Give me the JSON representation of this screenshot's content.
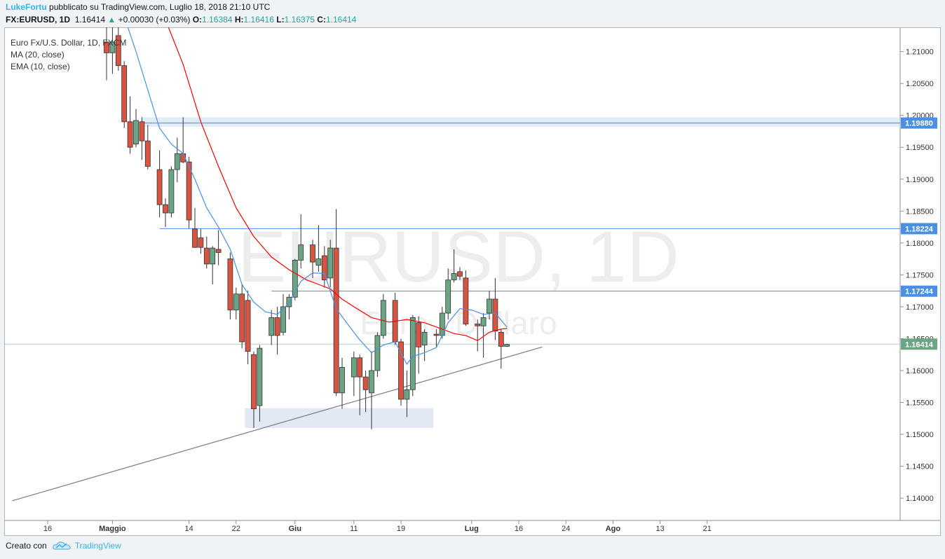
{
  "header": {
    "author": "LukeFortu",
    "published_text": "pubblicato su TradingView.com, Luglio 18, 2018 21:10 UTC",
    "symbol": "FX:EURUSD, 1D",
    "last": "1.16414",
    "arrow": "▲",
    "change": "+0.00030 (+0.03%)",
    "o_label": "O:",
    "o": "1.16384",
    "h_label": "H:",
    "h": "1.16416",
    "l_label": "L:",
    "l": "1.16375",
    "c_label": "C:",
    "c": "1.16414"
  },
  "legend": {
    "title": "Euro Fx/U.S. Dollar, 1D, FXCM",
    "ma": "MA (20, close)",
    "ema": "EMA (10, close)"
  },
  "watermark": {
    "line1": "EURUSD, 1D",
    "line2": "Euro / Dollaro"
  },
  "footer": {
    "created_with": "Creato con",
    "brand": "TradingView"
  },
  "colors": {
    "up": "#6ba583",
    "down": "#d75442",
    "ma": "#ff0000",
    "ema": "#4a90e2",
    "accent": "#3bb3e4"
  },
  "chart_data": {
    "type": "candlestick",
    "title": "Euro Fx/U.S. Dollar, 1D, FXCM",
    "ylim": [
      1.1365,
      1.2138
    ],
    "y_ticks": [
      "1.21000",
      "1.20500",
      "1.20000",
      "1.19500",
      "1.19000",
      "1.18500",
      "1.18000",
      "1.17500",
      "1.17000",
      "1.16500",
      "1.16000",
      "1.15500",
      "1.15000",
      "1.14500",
      "1.14000"
    ],
    "x_ticks": [
      {
        "day": 0,
        "label": "16"
      },
      {
        "day": 11,
        "label": "Maggio"
      },
      {
        "day": 24,
        "label": "14"
      },
      {
        "day": 32,
        "label": "22"
      },
      {
        "day": 42,
        "label": "Giu"
      },
      {
        "day": 52,
        "label": "11"
      },
      {
        "day": 60,
        "label": "19"
      },
      {
        "day": 72,
        "label": "Lug"
      },
      {
        "day": 80,
        "label": "16"
      },
      {
        "day": 88,
        "label": "24"
      },
      {
        "day": 96,
        "label": "Ago"
      },
      {
        "day": 104,
        "label": "13"
      },
      {
        "day": 112,
        "label": "21"
      }
    ],
    "candles": [
      {
        "day": 10,
        "o": 1.2115,
        "h": 1.215,
        "l": 1.2055,
        "c": 1.2098
      },
      {
        "day": 11,
        "o": 1.2098,
        "h": 1.215,
        "l": 1.2065,
        "c": 1.2115
      },
      {
        "day": 12,
        "o": 1.2125,
        "h": 1.216,
        "l": 1.207,
        "c": 1.2078
      },
      {
        "day": 13,
        "o": 1.2078,
        "h": 1.2085,
        "l": 1.198,
        "c": 1.199
      },
      {
        "day": 14,
        "o": 1.199,
        "h": 1.203,
        "l": 1.194,
        "c": 1.195
      },
      {
        "day": 15,
        "o": 1.1955,
        "h": 1.201,
        "l": 1.195,
        "c": 1.1992
      },
      {
        "day": 16,
        "o": 1.199,
        "h": 1.1997,
        "l": 1.193,
        "c": 1.196
      },
      {
        "day": 17,
        "o": 1.196,
        "h": 1.1985,
        "l": 1.1915,
        "c": 1.192
      },
      {
        "day": 19,
        "o": 1.1915,
        "h": 1.1945,
        "l": 1.184,
        "c": 1.186
      },
      {
        "day": 20,
        "o": 1.186,
        "h": 1.187,
        "l": 1.1825,
        "c": 1.1847
      },
      {
        "day": 21,
        "o": 1.1847,
        "h": 1.192,
        "l": 1.184,
        "c": 1.1915
      },
      {
        "day": 22,
        "o": 1.1915,
        "h": 1.1965,
        "l": 1.1895,
        "c": 1.194
      },
      {
        "day": 23,
        "o": 1.194,
        "h": 1.1997,
        "l": 1.1925,
        "c": 1.1927
      },
      {
        "day": 24,
        "o": 1.1927,
        "h": 1.1935,
        "l": 1.1823,
        "c": 1.1836
      },
      {
        "day": 25,
        "o": 1.1822,
        "h": 1.1855,
        "l": 1.1792,
        "c": 1.1793
      },
      {
        "day": 26,
        "o": 1.1808,
        "h": 1.1822,
        "l": 1.1783,
        "c": 1.1793
      },
      {
        "day": 27,
        "o": 1.1792,
        "h": 1.181,
        "l": 1.176,
        "c": 1.1767
      },
      {
        "day": 28,
        "o": 1.1767,
        "h": 1.1795,
        "l": 1.1735,
        "c": 1.1792
      },
      {
        "day": 29,
        "o": 1.179,
        "h": 1.182,
        "l": 1.1765,
        "c": 1.1785
      },
      {
        "day": 31,
        "o": 1.1775,
        "h": 1.1785,
        "l": 1.168,
        "c": 1.1695
      },
      {
        "day": 32,
        "o": 1.1695,
        "h": 1.173,
        "l": 1.168,
        "c": 1.172
      },
      {
        "day": 33,
        "o": 1.172,
        "h": 1.1735,
        "l": 1.1635,
        "c": 1.1645
      },
      {
        "day": 34,
        "o": 1.171,
        "h": 1.1725,
        "l": 1.161,
        "c": 1.163
      },
      {
        "day": 35,
        "o": 1.1625,
        "h": 1.163,
        "l": 1.151,
        "c": 1.154
      },
      {
        "day": 36,
        "o": 1.1545,
        "h": 1.164,
        "l": 1.152,
        "c": 1.1635
      },
      {
        "day": 38,
        "o": 1.1655,
        "h": 1.1695,
        "l": 1.164,
        "c": 1.1683
      },
      {
        "day": 39,
        "o": 1.1683,
        "h": 1.17,
        "l": 1.1625,
        "c": 1.1655
      },
      {
        "day": 40,
        "o": 1.166,
        "h": 1.172,
        "l": 1.1655,
        "c": 1.17
      },
      {
        "day": 41,
        "o": 1.17,
        "h": 1.172,
        "l": 1.168,
        "c": 1.1715
      },
      {
        "day": 42,
        "o": 1.1715,
        "h": 1.1775,
        "l": 1.171,
        "c": 1.1773
      },
      {
        "day": 43,
        "o": 1.1773,
        "h": 1.1845,
        "l": 1.176,
        "c": 1.1797
      },
      {
        "day": 45,
        "o": 1.1797,
        "h": 1.1805,
        "l": 1.1745,
        "c": 1.177
      },
      {
        "day": 46,
        "o": 1.1765,
        "h": 1.1828,
        "l": 1.1755,
        "c": 1.1775
      },
      {
        "day": 47,
        "o": 1.178,
        "h": 1.1795,
        "l": 1.173,
        "c": 1.1742
      },
      {
        "day": 48,
        "o": 1.1745,
        "h": 1.1805,
        "l": 1.173,
        "c": 1.1792
      },
      {
        "day": 49,
        "o": 1.1792,
        "h": 1.1853,
        "l": 1.156,
        "c": 1.1565
      },
      {
        "day": 50,
        "o": 1.1565,
        "h": 1.162,
        "l": 1.154,
        "c": 1.1605
      },
      {
        "day": 52,
        "o": 1.159,
        "h": 1.163,
        "l": 1.156,
        "c": 1.162
      },
      {
        "day": 53,
        "o": 1.162,
        "h": 1.1625,
        "l": 1.153,
        "c": 1.159
      },
      {
        "day": 54,
        "o": 1.159,
        "h": 1.16,
        "l": 1.1535,
        "c": 1.157
      },
      {
        "day": 55,
        "o": 1.1565,
        "h": 1.163,
        "l": 1.1508,
        "c": 1.16
      },
      {
        "day": 56,
        "o": 1.16,
        "h": 1.166,
        "l": 1.159,
        "c": 1.1655
      },
      {
        "day": 57,
        "o": 1.1655,
        "h": 1.172,
        "l": 1.165,
        "c": 1.171
      },
      {
        "day": 59,
        "o": 1.171,
        "h": 1.1722,
        "l": 1.164,
        "c": 1.1645
      },
      {
        "day": 60,
        "o": 1.1645,
        "h": 1.165,
        "l": 1.1545,
        "c": 1.1555
      },
      {
        "day": 61,
        "o": 1.1555,
        "h": 1.16,
        "l": 1.1527,
        "c": 1.157
      },
      {
        "day": 62,
        "o": 1.157,
        "h": 1.1687,
        "l": 1.156,
        "c": 1.1683
      },
      {
        "day": 63,
        "o": 1.1675,
        "h": 1.1685,
        "l": 1.1595,
        "c": 1.1637
      },
      {
        "day": 64,
        "o": 1.164,
        "h": 1.1665,
        "l": 1.1615,
        "c": 1.166
      },
      {
        "day": 66,
        "o": 1.1657,
        "h": 1.1665,
        "l": 1.1637,
        "c": 1.1655
      },
      {
        "day": 67,
        "o": 1.1655,
        "h": 1.17,
        "l": 1.165,
        "c": 1.169
      },
      {
        "day": 68,
        "o": 1.169,
        "h": 1.176,
        "l": 1.168,
        "c": 1.1742
      },
      {
        "day": 69,
        "o": 1.1742,
        "h": 1.179,
        "l": 1.1738,
        "c": 1.1752
      },
      {
        "day": 70,
        "o": 1.1755,
        "h": 1.1762,
        "l": 1.1742,
        "c": 1.1748
      },
      {
        "day": 71,
        "o": 1.1745,
        "h": 1.1757,
        "l": 1.167,
        "c": 1.1673
      },
      {
        "day": 73,
        "o": 1.1673,
        "h": 1.168,
        "l": 1.163,
        "c": 1.167
      },
      {
        "day": 74,
        "o": 1.167,
        "h": 1.169,
        "l": 1.162,
        "c": 1.1683
      },
      {
        "day": 75,
        "o": 1.169,
        "h": 1.1725,
        "l": 1.168,
        "c": 1.1712
      },
      {
        "day": 76,
        "o": 1.1712,
        "h": 1.1745,
        "l": 1.1648,
        "c": 1.1662
      },
      {
        "day": 77,
        "o": 1.166,
        "h": 1.1665,
        "l": 1.1603,
        "c": 1.1638
      },
      {
        "day": 78,
        "o": 1.1638,
        "h": 1.1642,
        "l": 1.1637,
        "c": 1.1641
      }
    ],
    "ma20": [
      [
        18,
        1.2225
      ],
      [
        20,
        1.215
      ],
      [
        23,
        1.208
      ],
      [
        26,
        1.199
      ],
      [
        29,
        1.192
      ],
      [
        32,
        1.1855
      ],
      [
        35,
        1.181
      ],
      [
        38,
        1.1778
      ],
      [
        41,
        1.1758
      ],
      [
        44,
        1.1742
      ],
      [
        46,
        1.1735
      ],
      [
        48,
        1.1728
      ],
      [
        50,
        1.1712
      ],
      [
        52,
        1.17
      ],
      [
        55,
        1.1683
      ],
      [
        58,
        1.1676
      ],
      [
        61,
        1.168
      ],
      [
        64,
        1.1675
      ],
      [
        67,
        1.1665
      ],
      [
        69,
        1.1658
      ],
      [
        71,
        1.1655
      ],
      [
        73,
        1.1647
      ],
      [
        75,
        1.166
      ],
      [
        77,
        1.1665
      ],
      [
        78,
        1.1666
      ]
    ],
    "ema10": [
      [
        13,
        1.2155
      ],
      [
        15,
        1.21
      ],
      [
        17,
        1.204
      ],
      [
        19,
        1.198
      ],
      [
        21,
        1.1955
      ],
      [
        23,
        1.194
      ],
      [
        25,
        1.19
      ],
      [
        27,
        1.1855
      ],
      [
        29,
        1.1825
      ],
      [
        31,
        1.179
      ],
      [
        33,
        1.1735
      ],
      [
        35,
        1.1707
      ],
      [
        37,
        1.1692
      ],
      [
        39,
        1.1688
      ],
      [
        41,
        1.1706
      ],
      [
        43,
        1.174
      ],
      [
        45,
        1.1753
      ],
      [
        47,
        1.1752
      ],
      [
        49,
        1.1697
      ],
      [
        51,
        1.1672
      ],
      [
        53,
        1.1648
      ],
      [
        55,
        1.1628
      ],
      [
        57,
        1.164
      ],
      [
        59,
        1.1645
      ],
      [
        61,
        1.161
      ],
      [
        62,
        1.1622
      ],
      [
        64,
        1.1628
      ],
      [
        66,
        1.1636
      ],
      [
        68,
        1.1675
      ],
      [
        70,
        1.1697
      ],
      [
        72,
        1.1695
      ],
      [
        74,
        1.1688
      ],
      [
        76,
        1.169
      ],
      [
        78,
        1.1668
      ]
    ],
    "levels": [
      {
        "price": 1.1988,
        "label": "1.19880",
        "from_day": 16,
        "zone": [
          1.1982,
          1.1997
        ]
      },
      {
        "price": 1.18224,
        "label": "1.18224",
        "from_day": 19
      },
      {
        "price": 1.17244,
        "label": "1.17244",
        "from_day": 38
      },
      {
        "price": 1.16414,
        "label": "1.16414",
        "from_day": -6,
        "last": true
      }
    ],
    "box": {
      "day_from": 33.5,
      "day_to": 65.5,
      "top": 1.1541,
      "bottom": 1.151
    },
    "trendline": [
      [
        -6,
        1.1396
      ],
      [
        84,
        1.1637
      ]
    ]
  }
}
